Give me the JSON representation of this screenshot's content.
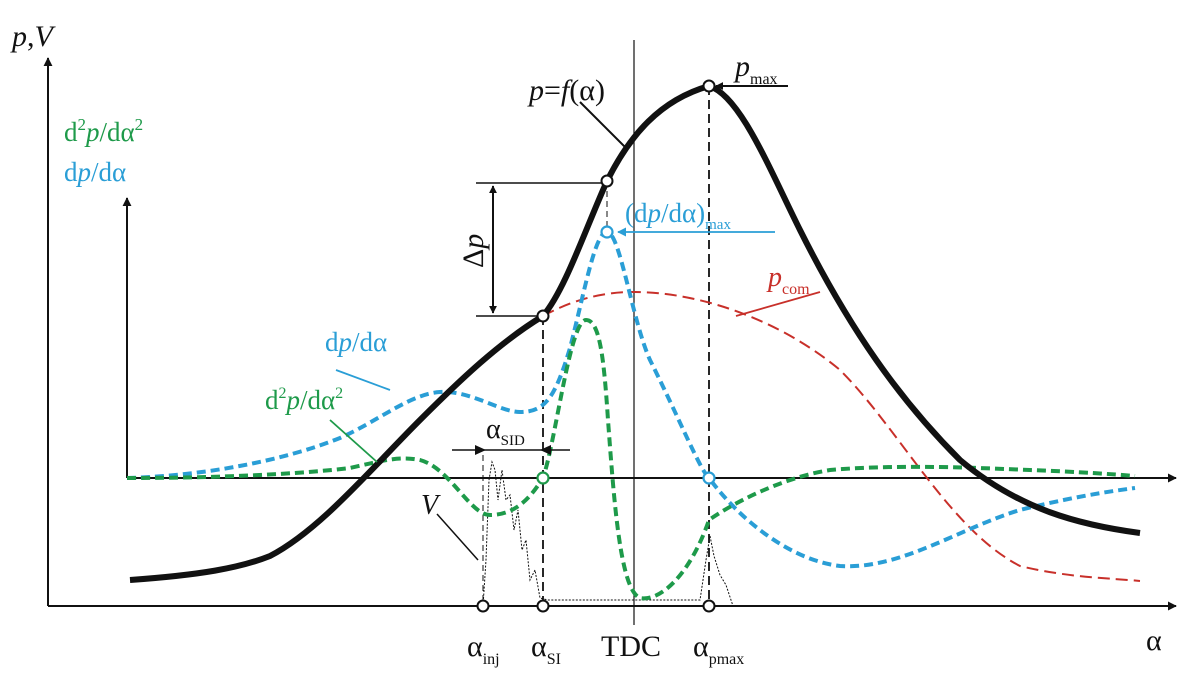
{
  "colors": {
    "pressure": "#111111",
    "second_derivative": "#1e9a4a",
    "first_derivative": "#2a9ed6",
    "compression": "#c8302a"
  },
  "axes": {
    "y_main": {
      "p": "p",
      "sep": ",",
      "v": "V"
    },
    "y_secondary": {
      "d2": {
        "d": "d",
        "sup2": "2",
        "p": "p",
        "slash": "/dα",
        "sup2b": "2"
      },
      "d1": {
        "d": "d",
        "p": "p",
        "slash": "/dα"
      }
    },
    "x": "α"
  },
  "labels": {
    "pfa": {
      "p": "p",
      "eq": "=",
      "f": "f",
      "arg": "(α)"
    },
    "pmax": {
      "p": "p",
      "sub": "max"
    },
    "dpmax": {
      "open": "(d",
      "p": "p",
      "rest": "/dα)",
      "sub": "max"
    },
    "pcom": {
      "p": "p",
      "sub": "com"
    },
    "dp_label": {
      "d": "d",
      "p": "p",
      "rest": "/dα"
    },
    "d2p_label": {
      "d": "d",
      "sup": "2",
      "p": "p",
      "rest": "/dα",
      "sup2": "2"
    },
    "delta_p": {
      "delta": "Δ",
      "p": "p"
    },
    "alpha_sid": {
      "a": "α",
      "sub": "SID"
    },
    "V": "V"
  },
  "x_ticks": {
    "inj": {
      "a": "α",
      "sub": "inj"
    },
    "si": {
      "a": "α",
      "sub": "SI"
    },
    "tdc": "TDC",
    "pmax": {
      "a": "α",
      "sub": "pmax"
    }
  }
}
